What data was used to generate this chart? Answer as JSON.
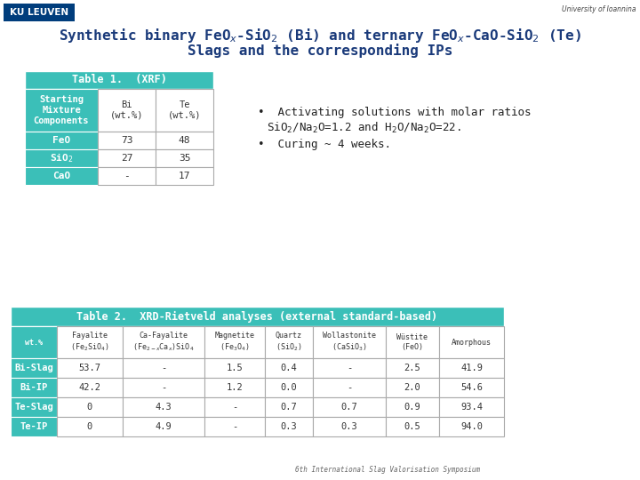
{
  "teal": "#3bbfb8",
  "ku_blue": "#003d7c",
  "white": "#ffffff",
  "dark_text": "#222222",
  "gray_text": "#555555",
  "title_blue": "#1a3a7a",
  "title_line1": "Synthetic binary FeO$_x$-SiO$_2$ (Bi) and ternary FeO$_x$-CaO-SiO$_2$ (Te)",
  "title_line2": "Slags and the corresponding IPs",
  "table1_header": "Table 1.  (XRF)",
  "table1_col1_header": "Starting\nMixture\nComponents",
  "table1_col2_header": "Bi\n(wt.%)",
  "table1_col3_header": "Te\n(wt.%)",
  "table1_row_labels": [
    "FeO",
    "SiO$_2$",
    "CaO"
  ],
  "table1_bi_vals": [
    "73",
    "27",
    "-"
  ],
  "table1_te_vals": [
    "48",
    "35",
    "17"
  ],
  "bullet1a": "Activating solutions with molar ratios",
  "bullet1b": "SiO$_2$/Na$_2$O=1.2 and H$_2$O/Na$_2$O=22.",
  "bullet2": "Curing ~ 4 weeks.",
  "table2_header": "Table 2.  XRD-Rietveld analyses (external standard-based)",
  "table2_col_headers": [
    "wt.%",
    "Fayalite\n(Fe$_2$SiO$_4$)",
    "Ca-Fayalite\n(Fe$_{2-x}$Ca$_x$)SiO$_4$",
    "Magnetite\n(Fe$_3$O$_4$)",
    "Quartz\n(SiO$_2$)",
    "Wollastonite\n(CaSiO$_3$)",
    "Wüstite\n(FeO)",
    "Amorphous"
  ],
  "table2_rows": [
    [
      "Bi-Slag",
      "53.7",
      "-",
      "1.5",
      "0.4",
      "-",
      "2.5",
      "41.9"
    ],
    [
      "Bi-IP",
      "42.2",
      "-",
      "1.2",
      "0.0",
      "-",
      "2.0",
      "54.6"
    ],
    [
      "Te-Slag",
      "0",
      "4.3",
      "-",
      "0.7",
      "0.7",
      "0.9",
      "93.4"
    ],
    [
      "Te-IP",
      "0",
      "4.9",
      "-",
      "0.3",
      "0.3",
      "0.5",
      "94.0"
    ]
  ],
  "t2_col_widths": [
    52,
    74,
    92,
    68,
    54,
    82,
    60,
    73
  ],
  "footer": "6th International Slag Valorisation Symposium"
}
